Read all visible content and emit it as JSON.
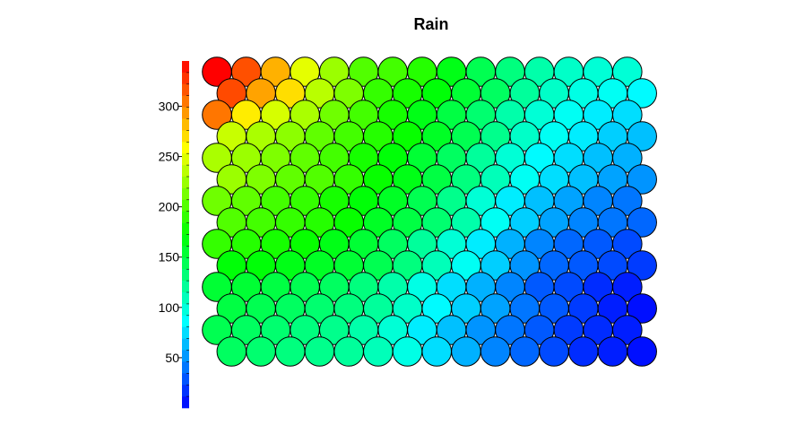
{
  "chart_data": {
    "type": "heatmap",
    "title": "Rain",
    "grid_shape": "hexagonal-circles",
    "rows": 14,
    "cols": 15,
    "colorscale": "rainbow",
    "colorbar": {
      "range": [
        0,
        345
      ],
      "ticks": [
        50,
        100,
        150,
        200,
        250,
        300
      ],
      "tick_labels": [
        "50",
        "100",
        "150",
        "200",
        "250",
        "300"
      ]
    },
    "values": [
      [
        345,
        318,
        285,
        250,
        225,
        200,
        195,
        185,
        165,
        145,
        130,
        115,
        105,
        100,
        100
      ],
      [
        320,
        290,
        270,
        235,
        215,
        190,
        180,
        170,
        155,
        140,
        120,
        105,
        95,
        90,
        85
      ],
      [
        305,
        265,
        245,
        230,
        210,
        195,
        180,
        165,
        150,
        135,
        115,
        100,
        90,
        80,
        75
      ],
      [
        240,
        230,
        220,
        205,
        195,
        185,
        175,
        160,
        145,
        125,
        105,
        90,
        80,
        70,
        65
      ],
      [
        230,
        225,
        215,
        205,
        195,
        180,
        170,
        155,
        140,
        120,
        100,
        85,
        75,
        65,
        60
      ],
      [
        225,
        215,
        205,
        200,
        190,
        175,
        165,
        150,
        130,
        110,
        90,
        75,
        65,
        55,
        50
      ],
      [
        210,
        205,
        195,
        190,
        180,
        170,
        160,
        145,
        125,
        100,
        80,
        65,
        55,
        45,
        40
      ],
      [
        200,
        195,
        190,
        185,
        175,
        160,
        150,
        135,
        115,
        90,
        70,
        55,
        45,
        40,
        35
      ],
      [
        190,
        185,
        180,
        175,
        165,
        155,
        140,
        120,
        100,
        80,
        60,
        45,
        35,
        30,
        25
      ],
      [
        170,
        170,
        165,
        160,
        155,
        145,
        130,
        110,
        90,
        70,
        50,
        35,
        30,
        25,
        20
      ],
      [
        155,
        155,
        150,
        145,
        140,
        130,
        115,
        95,
        75,
        60,
        45,
        30,
        25,
        15,
        10
      ],
      [
        150,
        145,
        140,
        135,
        130,
        120,
        105,
        85,
        70,
        55,
        40,
        30,
        20,
        10,
        5
      ],
      [
        145,
        140,
        135,
        130,
        125,
        115,
        100,
        80,
        65,
        50,
        40,
        30,
        20,
        15,
        10
      ],
      [
        140,
        135,
        130,
        125,
        120,
        110,
        95,
        75,
        60,
        45,
        35,
        25,
        15,
        10,
        5
      ]
    ]
  }
}
